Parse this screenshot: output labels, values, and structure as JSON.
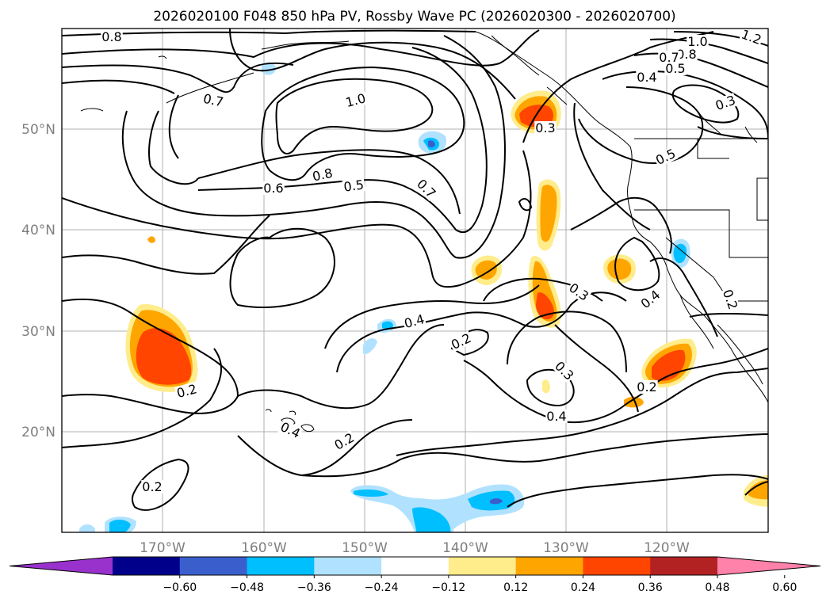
{
  "title": "2026020100 F048 850 hPa PV, Rossby Wave PC (2026020300 - 2026020700)",
  "map": {
    "lat_labels": [
      "50°N",
      "40°N",
      "30°N",
      "20°N"
    ],
    "lon_labels": [
      "170°W",
      "160°W",
      "150°W",
      "140°W",
      "130°W",
      "120°W"
    ],
    "contour_labels": [
      {
        "text": "0.8"
      },
      {
        "text": "0.7"
      },
      {
        "text": "1.0"
      },
      {
        "text": "0.8"
      },
      {
        "text": "0.6"
      },
      {
        "text": "0.5"
      },
      {
        "text": "0.7"
      },
      {
        "text": "0.3"
      },
      {
        "text": "1.0"
      },
      {
        "text": "1.2"
      },
      {
        "text": "0.8"
      },
      {
        "text": "0.7"
      },
      {
        "text": "0.5"
      },
      {
        "text": "0.4"
      },
      {
        "text": "0.3"
      },
      {
        "text": "0.5"
      },
      {
        "text": "0.3"
      },
      {
        "text": "0.4"
      },
      {
        "text": "0.2"
      },
      {
        "text": "0.4"
      },
      {
        "text": "0.2"
      },
      {
        "text": "0.3"
      },
      {
        "text": "0.4"
      },
      {
        "text": "0.2"
      },
      {
        "text": "0.2"
      },
      {
        "text": "0.4"
      },
      {
        "text": "0.2"
      },
      {
        "text": "0.2"
      }
    ]
  },
  "colorbar": {
    "colors": [
      "#9932cc",
      "#00008b",
      "#3a5fcd",
      "#00bfff",
      "#b0e2ff",
      "#ffffff",
      "#ffec8b",
      "#ffa500",
      "#ff4500",
      "#b22222",
      "#ff82ab"
    ],
    "tick_labels": [
      "−0.60",
      "−0.48",
      "−0.36",
      "−0.24",
      "−0.12",
      "0.12",
      "0.24",
      "0.36",
      "0.48",
      "0.60"
    ]
  }
}
